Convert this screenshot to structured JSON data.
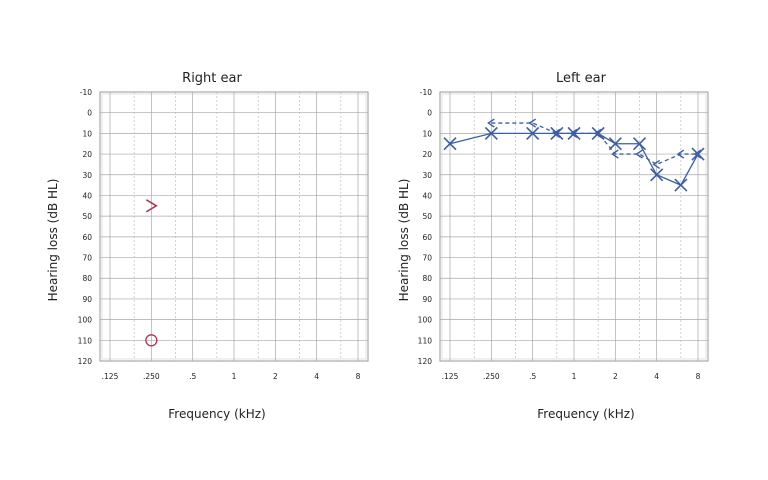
{
  "chart_data": [
    {
      "type": "line",
      "title": "Right ear",
      "xlabel": "Frequency (kHz)",
      "ylabel": "Hearing loss (dB HL)",
      "x_scale": "log2",
      "x_ticks": [
        0.125,
        0.25,
        0.5,
        1,
        2,
        4,
        8
      ],
      "x_tick_labels": [
        ".125",
        ".250",
        ".5",
        "1",
        "2",
        "4",
        "8"
      ],
      "ylim": [
        -10,
        120
      ],
      "y_inverted": true,
      "y_ticks": [
        -10,
        0,
        10,
        20,
        30,
        40,
        50,
        60,
        70,
        80,
        90,
        100,
        110,
        120
      ],
      "y_tick_labels": [
        "-10",
        "0",
        "10",
        "20",
        "30",
        "40",
        "50",
        "60",
        "70",
        "80",
        "90",
        "100",
        "110",
        "120"
      ],
      "grid": true,
      "series": [
        {
          "marker": "angle-right",
          "color": "#b5324a",
          "connect": false,
          "dashed": false,
          "points": [
            {
              "x": 0.25,
              "y": 45
            }
          ]
        },
        {
          "marker": "circle",
          "color": "#b5324a",
          "connect": false,
          "dashed": false,
          "points": [
            {
              "x": 0.25,
              "y": 110
            }
          ]
        }
      ]
    },
    {
      "type": "line",
      "title": "Left ear",
      "xlabel": "Frequency (kHz)",
      "ylabel": "Hearing loss (dB HL)",
      "x_scale": "log2",
      "x_ticks": [
        0.125,
        0.25,
        0.5,
        1,
        2,
        4,
        8
      ],
      "x_tick_labels": [
        ".125",
        ".250",
        ".5",
        "1",
        "2",
        "4",
        "8"
      ],
      "ylim": [
        -10,
        120
      ],
      "y_inverted": true,
      "y_ticks": [
        -10,
        0,
        10,
        20,
        30,
        40,
        50,
        60,
        70,
        80,
        90,
        100,
        110,
        120
      ],
      "y_tick_labels": [
        "-10",
        "0",
        "10",
        "20",
        "30",
        "40",
        "50",
        "60",
        "70",
        "80",
        "90",
        "100",
        "110",
        "120"
      ],
      "grid": true,
      "series": [
        {
          "marker": "x",
          "color": "#3a5ea8",
          "connect": true,
          "dashed": false,
          "points": [
            {
              "x": 0.125,
              "y": 15
            },
            {
              "x": 0.25,
              "y": 10
            },
            {
              "x": 0.5,
              "y": 10
            },
            {
              "x": 0.75,
              "y": 10
            },
            {
              "x": 1,
              "y": 10
            },
            {
              "x": 1.5,
              "y": 10
            },
            {
              "x": 2,
              "y": 15
            },
            {
              "x": 3,
              "y": 15
            },
            {
              "x": 4,
              "y": 30
            },
            {
              "x": 6,
              "y": 35
            },
            {
              "x": 8,
              "y": 20
            }
          ]
        },
        {
          "marker": "angle-left",
          "color": "#3a5ea8",
          "connect": true,
          "dashed": true,
          "points": [
            {
              "x": 0.25,
              "y": 5
            },
            {
              "x": 0.5,
              "y": 5
            },
            {
              "x": 0.75,
              "y": 10
            },
            {
              "x": 1,
              "y": 10
            },
            {
              "x": 1.5,
              "y": 10
            },
            {
              "x": 2,
              "y": 20
            },
            {
              "x": 3,
              "y": 20
            },
            {
              "x": 4,
              "y": 25
            },
            {
              "x": 6,
              "y": 20
            },
            {
              "x": 8,
              "y": 20
            }
          ]
        }
      ]
    }
  ]
}
